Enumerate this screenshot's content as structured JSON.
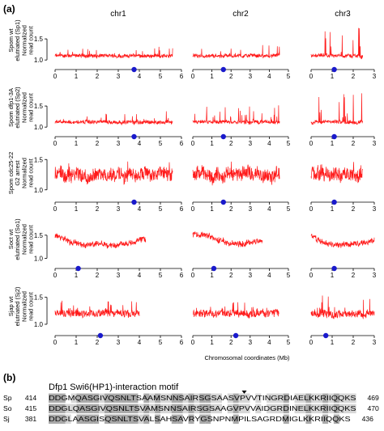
{
  "panel_a_label": "(a)",
  "panel_b_label": "(b)",
  "chart_data": {
    "type": "line",
    "title": "",
    "xlabel": "Chromosomal coordinates (Mb)",
    "columns": [
      {
        "name": "chr1",
        "xmax": 6,
        "ticks": [
          0,
          1,
          2,
          3,
          4,
          5,
          6
        ]
      },
      {
        "name": "chr2",
        "xmax": 5,
        "ticks": [
          0,
          1,
          2,
          3,
          4,
          5
        ]
      },
      {
        "name": "chr3",
        "xmax": 3,
        "ticks": [
          0,
          1,
          2,
          3
        ]
      }
    ],
    "rows": [
      {
        "label": [
          "Spom wt",
          "elutriated (Sp1)",
          "Normalized",
          "read count"
        ],
        "yticks": [
          1.0,
          1.5
        ],
        "ylim": [
          0.85,
          2.0
        ],
        "chr_lengths": [
          5.58,
          4.54,
          2.45
        ],
        "dots": [
          3.75,
          1.6,
          1.1
        ],
        "level": 1.1,
        "noise": 0.05,
        "spikes": [
          0.25,
          0.25,
          0.85
        ]
      },
      {
        "label": [
          "Spom dfp1-3A",
          "elutriated (Sp2)",
          "Normalized",
          "read count"
        ],
        "yticks": [
          1.0,
          1.5
        ],
        "ylim": [
          0.85,
          2.0
        ],
        "chr_lengths": [
          5.58,
          4.54,
          2.45
        ],
        "dots": [
          3.75,
          1.6,
          1.1
        ],
        "level": 1.12,
        "noise": 0.05,
        "spikes": [
          0.3,
          0.45,
          0.8
        ]
      },
      {
        "label": [
          "Spom cdc25-22",
          "G2 arrest",
          "Normalized",
          "read count"
        ],
        "yticks": [
          1.0,
          1.5
        ],
        "ylim": [
          0.85,
          1.65
        ],
        "chr_lengths": [
          5.58,
          4.54,
          2.45
        ],
        "dots": [
          3.75,
          1.6,
          1.1
        ],
        "level": 1.25,
        "noise": 0.13,
        "spikes": [
          0.3,
          0.3,
          0.35
        ]
      },
      {
        "label": [
          "Soct wt",
          "elutriated (So1)",
          "Normalized",
          "read count"
        ],
        "yticks": [
          1.0,
          1.5
        ],
        "ylim": [
          0.85,
          1.9
        ],
        "chr_lengths": [
          4.3,
          3.65,
          3.0
        ],
        "dots": [
          1.1,
          1.1,
          1.1
        ],
        "level": 1.3,
        "noise": 0.07,
        "spikes": [
          0.05,
          0.05,
          0.05
        ]
      },
      {
        "label": [
          "Sjap wt",
          "elutriated (Sj2)",
          "Normalized",
          "read count"
        ],
        "yticks": [
          1.0,
          1.5
        ],
        "ylim": [
          0.85,
          1.75
        ],
        "chr_lengths": [
          4.0,
          4.5,
          3.0
        ],
        "dots": [
          2.15,
          2.25,
          0.7
        ],
        "level": 1.2,
        "noise": 0.08,
        "spikes": [
          0.45,
          0.35,
          0.55
        ]
      }
    ]
  },
  "motif": {
    "title": "Dfp1 Swi6(HP1)-interaction motif",
    "sequences": [
      {
        "name": "Sp",
        "start": "414",
        "seq": "DDGMQASGIVQSNLTSAAMSNNSAIRSGSAASVPVVTINGRDIAELKKRIIQQKS",
        "end": "469"
      },
      {
        "name": "So",
        "start": "415",
        "seq": "DDGLQASGIVQSNLTSVAMSNNSAIRSGSAAGVPVVAIDGRDINELKKRIIQQKS",
        "end": "470"
      },
      {
        "name": "Sj",
        "start": "381",
        "seq": "DDGLAASGISQSNLTSVALSAHSAVRYGSNPNMPILSAGRDMIGLKKRIIQQKS",
        "end": "436"
      }
    ]
  }
}
